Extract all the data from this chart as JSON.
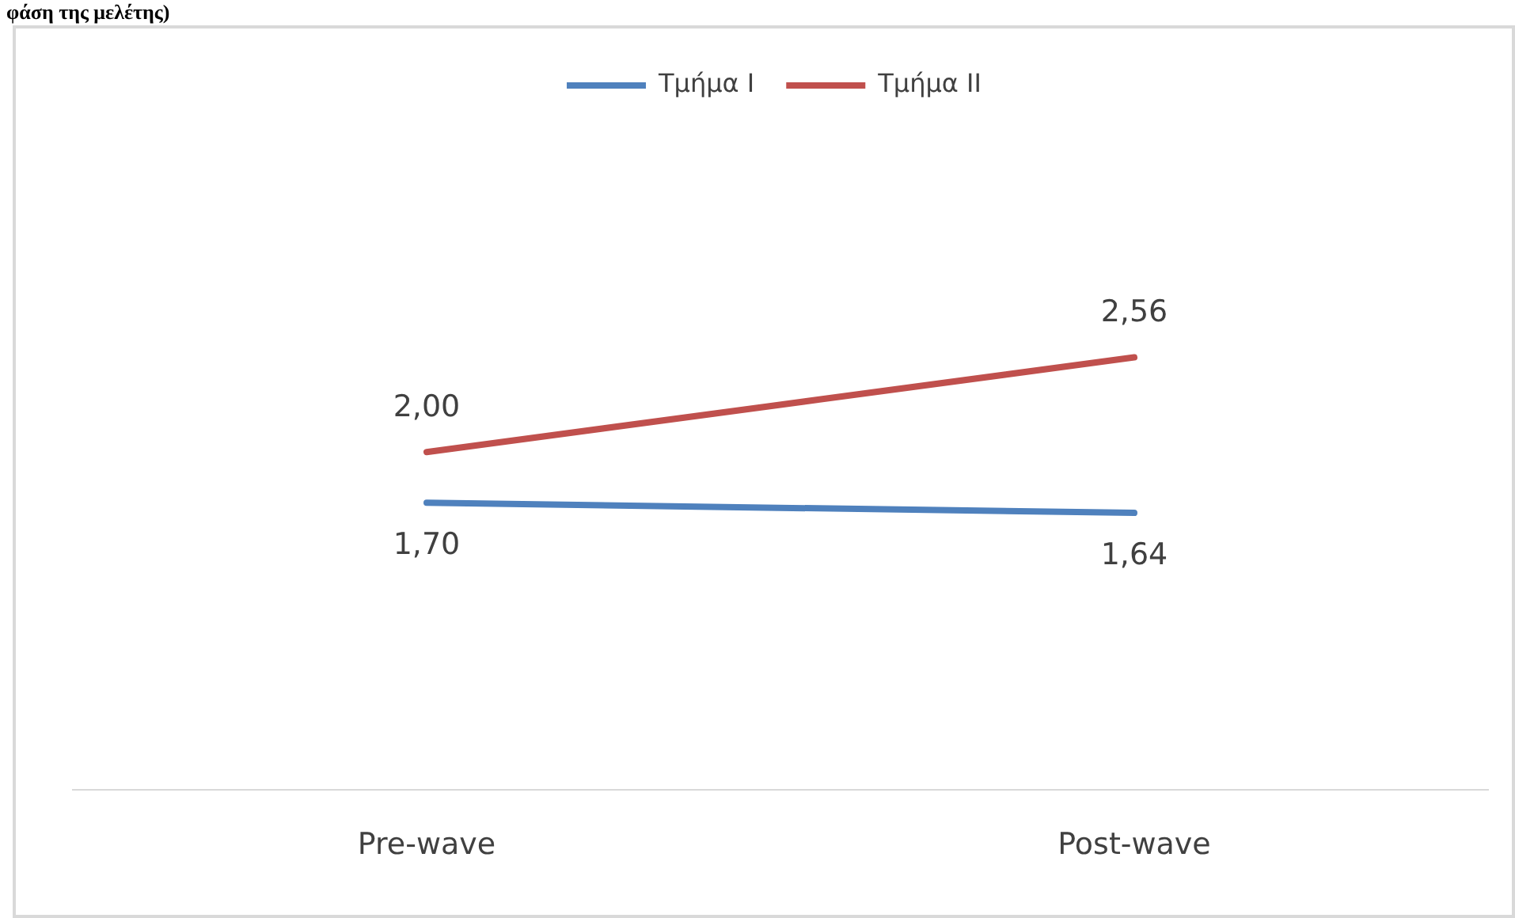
{
  "chart_data": {
    "type": "line",
    "title": "φάση της μελέτης)",
    "categories": [
      "Pre-wave",
      "Post-wave"
    ],
    "relative": false,
    "tick_labels": "x",
    "grid": false,
    "legend": "top",
    "marker": "none",
    "line_style": "solid",
    "series": [
      {
        "name": "Τμήμα Ι",
        "color": "#4f81bd",
        "values": [
          1.7,
          1.64
        ],
        "value_labels": [
          "1,70",
          "1,64"
        ]
      },
      {
        "name": "Τμήμα ΙΙ",
        "color": "#c0504d",
        "values": [
          2.0,
          2.56
        ],
        "value_labels": [
          "2,00",
          "2,56"
        ]
      }
    ]
  }
}
